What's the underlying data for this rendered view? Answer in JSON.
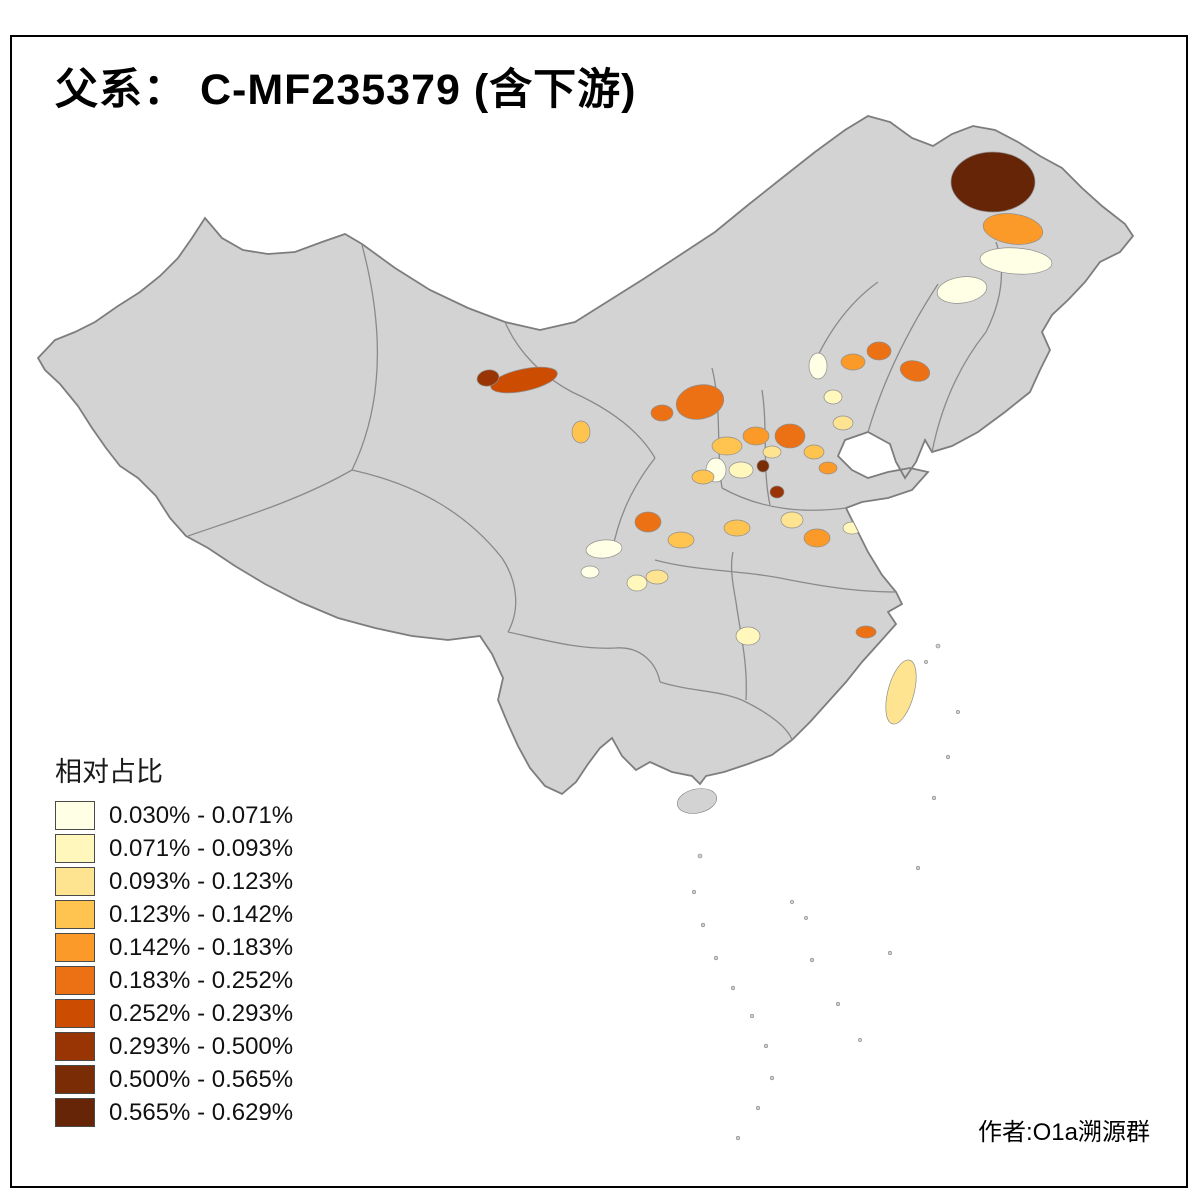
{
  "title": "父系： C-MF235379 (含下游)",
  "legend": {
    "title": "相对占比",
    "items": [
      {
        "label": "0.030% - 0.071%",
        "color": "#FFFFE5"
      },
      {
        "label": "0.071% - 0.093%",
        "color": "#FFF7BC"
      },
      {
        "label": "0.093% - 0.123%",
        "color": "#FEE391"
      },
      {
        "label": "0.123% - 0.142%",
        "color": "#FEC44F"
      },
      {
        "label": "0.142% - 0.183%",
        "color": "#FB9A29"
      },
      {
        "label": "0.183% - 0.252%",
        "color": "#EC7014"
      },
      {
        "label": "0.252% - 0.293%",
        "color": "#CC4C02"
      },
      {
        "label": "0.293% - 0.500%",
        "color": "#993404"
      },
      {
        "label": "0.500% - 0.565%",
        "color": "#7A2D05"
      },
      {
        "label": "0.565% - 0.629%",
        "color": "#662506"
      }
    ]
  },
  "credit": "作者:O1a溯源群",
  "map": {
    "base_fill": "#D3D3D3",
    "border_color": "#7D7D7D",
    "background": "#FFFFFF"
  }
}
